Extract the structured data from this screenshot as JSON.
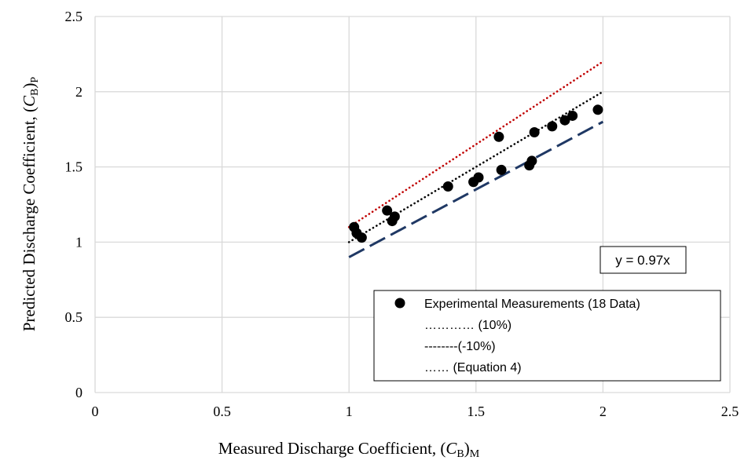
{
  "chart_data": {
    "type": "scatter",
    "xlabel": {
      "main": "Measured Discharge Coefficient, (",
      "var": "C",
      "sub1": "B",
      "close": ")",
      "sub2": "M"
    },
    "ylabel": {
      "main": "Predicted Discharge Coefficient, (",
      "var": "C",
      "sub1": "B",
      "close": ")",
      "sub2": "P"
    },
    "xlim": [
      0,
      2.5
    ],
    "ylim": [
      0,
      2.5
    ],
    "x_ticks": [
      "0",
      "0.5",
      "1",
      "1.5",
      "2",
      "2.5"
    ],
    "y_ticks": [
      "0",
      "0.5",
      "1",
      "1.5",
      "2",
      "2.5"
    ],
    "grid": true,
    "series": [
      {
        "name": "Experimental Measurements (18 Data)",
        "kind": "scatter",
        "color": "#000000",
        "points": [
          [
            1.02,
            1.1
          ],
          [
            1.03,
            1.06
          ],
          [
            1.05,
            1.03
          ],
          [
            1.15,
            1.21
          ],
          [
            1.17,
            1.14
          ],
          [
            1.18,
            1.17
          ],
          [
            1.39,
            1.37
          ],
          [
            1.49,
            1.4
          ],
          [
            1.51,
            1.43
          ],
          [
            1.59,
            1.7
          ],
          [
            1.6,
            1.48
          ],
          [
            1.71,
            1.51
          ],
          [
            1.72,
            1.54
          ],
          [
            1.73,
            1.73
          ],
          [
            1.8,
            1.77
          ],
          [
            1.85,
            1.81
          ],
          [
            1.88,
            1.84
          ],
          [
            1.98,
            1.88
          ]
        ]
      },
      {
        "name": "………… (10%)",
        "kind": "line",
        "style": "dotted",
        "color": "#c00000",
        "x": [
          1,
          2
        ],
        "y": [
          1.1,
          2.2
        ]
      },
      {
        "name": "--------(-10%)",
        "kind": "line",
        "style": "dashed",
        "color": "#1f3864",
        "x": [
          1,
          2
        ],
        "y": [
          0.9,
          1.8
        ]
      },
      {
        "name": "…… (Equation 4)",
        "kind": "line",
        "style": "dotted",
        "color": "#000000",
        "x": [
          1,
          2
        ],
        "y": [
          1.0,
          2.0
        ]
      }
    ],
    "annotation": "y = 0.97x",
    "legend_position": "bottom-right"
  }
}
